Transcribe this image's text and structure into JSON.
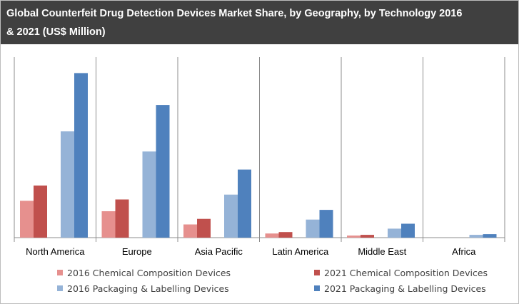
{
  "title_lines": [
    "Global Counterfeit Drug Detection Devices Market Share, by Geography, by Technology 2016",
    "& 2021 (US$ Million)"
  ],
  "chart_data": {
    "type": "bar",
    "title": "Global Counterfeit Drug Detection Devices Market Share, by Geography, by Technology 2016 & 2021 (US$ Million)",
    "categories": [
      "North America",
      "Europe",
      "Asia Pacific",
      "Latin America",
      "Middle East",
      "Africa"
    ],
    "series": [
      {
        "name": "2016 Chemical Composition Devices",
        "color": "#e6908e",
        "values": [
          53,
          38,
          19,
          6,
          3,
          0
        ]
      },
      {
        "name": "2021 Chemical Composition Devices",
        "color": "#c0504d",
        "values": [
          75,
          55,
          27,
          8,
          4,
          0
        ]
      },
      {
        "name": "2016 Packaging & Labelling Devices",
        "color": "#95b3d7",
        "values": [
          153,
          124,
          62,
          26,
          13,
          4
        ]
      },
      {
        "name": "2021 Packaging & Labelling Devices",
        "color": "#4f81bd",
        "values": [
          237,
          191,
          98,
          40,
          20,
          5
        ]
      }
    ],
    "ylim": [
      0,
      260
    ],
    "grid": false,
    "legend_position": "bottom"
  }
}
